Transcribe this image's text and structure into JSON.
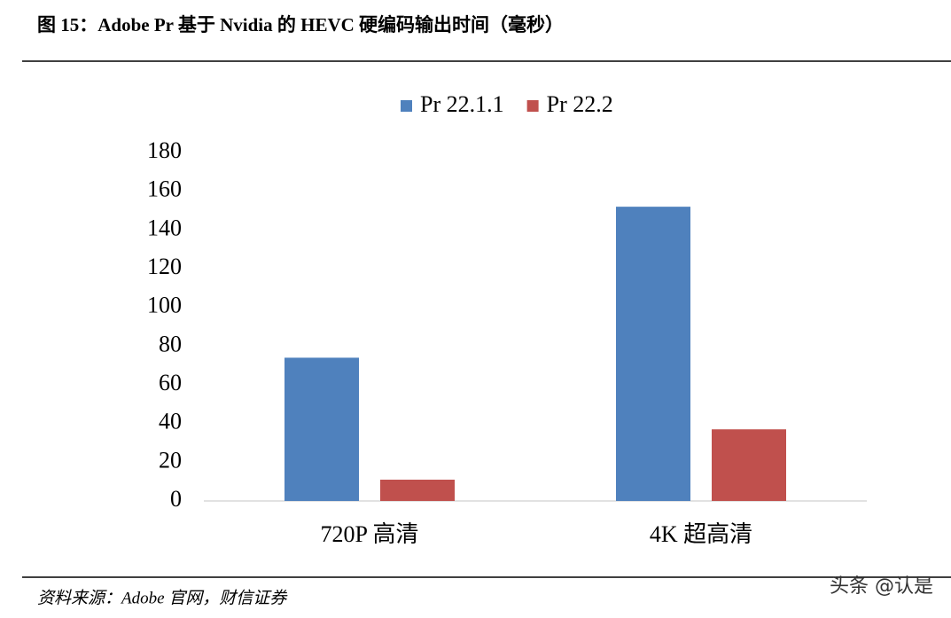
{
  "chart_data": {
    "type": "bar",
    "title": "图 15：Adobe Pr 基于 Nvidia 的 HEVC 硬编码输出时间（毫秒）",
    "categories": [
      "720P 高清",
      "4K 超高清"
    ],
    "series": [
      {
        "name": "Pr 22.1.1",
        "color": "#4f81bd",
        "values": [
          74,
          152
        ]
      },
      {
        "name": "Pr 22.2",
        "color": "#c0504d",
        "values": [
          11,
          37
        ]
      }
    ],
    "ylim": [
      0,
      180
    ],
    "yticks": [
      0,
      20,
      40,
      60,
      80,
      100,
      120,
      140,
      160,
      180
    ],
    "legend": "top",
    "source": "资料来源：Adobe 官网，财信证券",
    "watermark": "头条 @认是"
  }
}
